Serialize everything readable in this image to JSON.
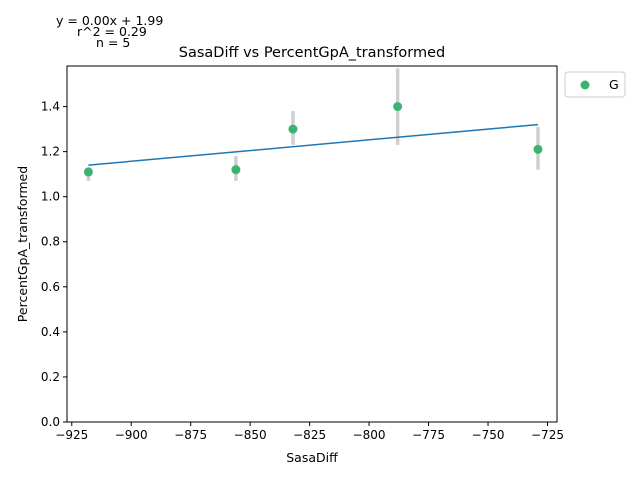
{
  "chart_data": {
    "type": "scatter",
    "title": "SasaDiff vs PercentGpA_transformed",
    "xlabel": "SasaDiff",
    "ylabel": "PercentGpA_transformed",
    "xlim": [
      -927,
      -721
    ],
    "ylim": [
      0,
      1.58
    ],
    "x_ticks": [
      -925,
      -900,
      -875,
      -850,
      -825,
      -800,
      -775,
      -750,
      -725
    ],
    "x_tick_labels": [
      "−925",
      "−900",
      "−875",
      "−850",
      "−825",
      "−800",
      "−775",
      "−750",
      "−725"
    ],
    "y_ticks": [
      0.0,
      0.2,
      0.4,
      0.6,
      0.8,
      1.0,
      1.2,
      1.4
    ],
    "y_tick_labels": [
      "0.0",
      "0.2",
      "0.4",
      "0.6",
      "0.8",
      "1.0",
      "1.2",
      "1.4"
    ],
    "grid": false,
    "legend_position": "outside-top-right",
    "series": [
      {
        "name": "G",
        "color": "#3cb371",
        "points": [
          {
            "x": -918,
            "y": 1.11,
            "err_low": 1.07,
            "err_high": 1.13
          },
          {
            "x": -856,
            "y": 1.12,
            "err_low": 1.07,
            "err_high": 1.18
          },
          {
            "x": -832,
            "y": 1.3,
            "err_low": 1.23,
            "err_high": 1.38
          },
          {
            "x": -788,
            "y": 1.4,
            "err_low": 1.23,
            "err_high": 1.57
          },
          {
            "x": -729,
            "y": 1.21,
            "err_low": 1.12,
            "err_high": 1.31
          }
        ]
      }
    ],
    "fit_line": {
      "color": "#1f77b4",
      "x": [
        -918,
        -729
      ],
      "y": [
        1.14,
        1.32
      ]
    },
    "annotations": {
      "equation": "y = 0.00x + 1.99",
      "r_squared": "r^2 = 0.29",
      "n": "n = 5"
    }
  }
}
